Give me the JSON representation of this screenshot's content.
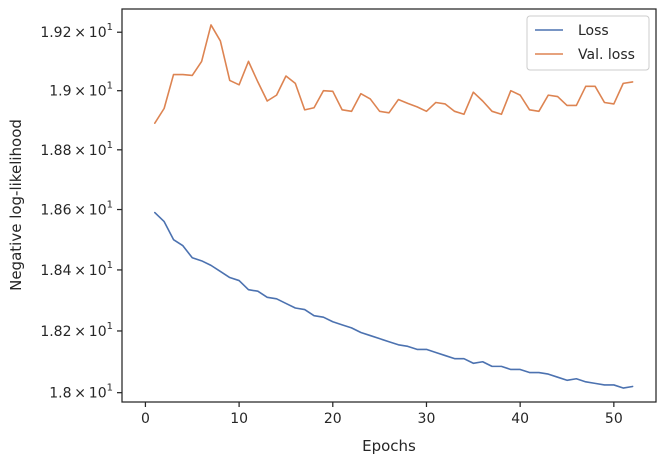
{
  "chart_data": {
    "type": "line",
    "xlabel": "Epochs",
    "ylabel": "Negative log-likelihood",
    "xlim": [
      -2.5,
      54.5
    ],
    "ylim": [
      17.97,
      19.28
    ],
    "y_scale": "log",
    "x_ticks": [
      0,
      10,
      20,
      30,
      40,
      50
    ],
    "x_tick_labels": [
      "0",
      "10",
      "20",
      "30",
      "40",
      "50"
    ],
    "y_ticks": [
      {
        "value": 18.0,
        "mantissa": "1.8",
        "times": "×",
        "base": "10",
        "exp": "1"
      },
      {
        "value": 18.2,
        "mantissa": "1.82",
        "times": "×",
        "base": "10",
        "exp": "1"
      },
      {
        "value": 18.4,
        "mantissa": "1.84",
        "times": "×",
        "base": "10",
        "exp": "1"
      },
      {
        "value": 18.6,
        "mantissa": "1.86",
        "times": "×",
        "base": "10",
        "exp": "1"
      },
      {
        "value": 18.8,
        "mantissa": "1.88",
        "times": "×",
        "base": "10",
        "exp": "1"
      },
      {
        "value": 19.0,
        "mantissa": "1.9",
        "times": "×",
        "base": "10",
        "exp": "1"
      },
      {
        "value": 19.2,
        "mantissa": "1.92",
        "times": "×",
        "base": "10",
        "exp": "1"
      }
    ],
    "grid": false,
    "legend_position": "top-right",
    "x": [
      1,
      2,
      3,
      4,
      5,
      6,
      7,
      8,
      9,
      10,
      11,
      12,
      13,
      14,
      15,
      16,
      17,
      18,
      19,
      20,
      21,
      22,
      23,
      24,
      25,
      26,
      27,
      28,
      29,
      30,
      31,
      32,
      33,
      34,
      35,
      36,
      37,
      38,
      39,
      40,
      41,
      42,
      43,
      44,
      45,
      46,
      47,
      48,
      49,
      50,
      51,
      52
    ],
    "series": [
      {
        "name": "Loss",
        "color": "#4c72b0",
        "values": [
          18.59,
          18.56,
          18.5,
          18.48,
          18.44,
          18.43,
          18.415,
          18.395,
          18.375,
          18.365,
          18.335,
          18.33,
          18.31,
          18.305,
          18.29,
          18.275,
          18.27,
          18.25,
          18.245,
          18.23,
          18.22,
          18.21,
          18.195,
          18.185,
          18.175,
          18.165,
          18.155,
          18.15,
          18.14,
          18.14,
          18.13,
          18.12,
          18.11,
          18.11,
          18.095,
          18.1,
          18.085,
          18.085,
          18.075,
          18.075,
          18.065,
          18.065,
          18.06,
          18.05,
          18.04,
          18.045,
          18.035,
          18.03,
          18.025,
          18.025,
          18.015,
          18.02
        ]
      },
      {
        "name": "Val. loss",
        "color": "#dd8452",
        "values": [
          18.89,
          18.94,
          19.055,
          19.055,
          19.052,
          19.1,
          19.225,
          19.17,
          19.035,
          19.02,
          19.1,
          19.03,
          18.965,
          18.985,
          19.05,
          19.025,
          18.935,
          18.942,
          19.0,
          18.998,
          18.935,
          18.93,
          18.99,
          18.972,
          18.93,
          18.925,
          18.97,
          18.957,
          18.945,
          18.93,
          18.96,
          18.955,
          18.93,
          18.92,
          18.995,
          18.965,
          18.93,
          18.92,
          19.0,
          18.985,
          18.935,
          18.93,
          18.985,
          18.98,
          18.95,
          18.95,
          19.015,
          19.015,
          18.96,
          18.955,
          19.025,
          19.03
        ]
      }
    ]
  }
}
